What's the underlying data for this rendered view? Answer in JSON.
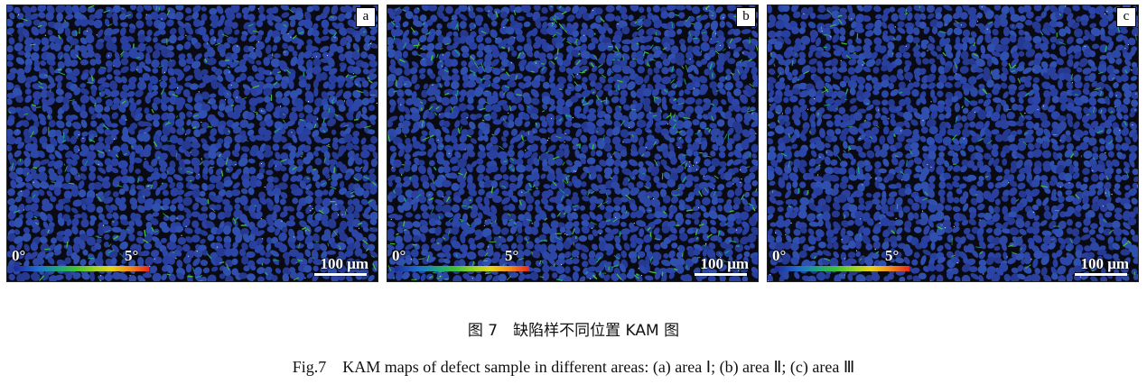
{
  "panels": [
    {
      "letter": "a",
      "scale_min": "0°",
      "scale_max": "5°",
      "scale_bar": "100 μm",
      "green_density": 0.28
    },
    {
      "letter": "b",
      "scale_min": "0°",
      "scale_max": "5°",
      "scale_bar": "100 μm",
      "green_density": 0.5
    },
    {
      "letter": "c",
      "scale_min": "0°",
      "scale_max": "5°",
      "scale_bar": "100 μm",
      "green_density": 0.18
    }
  ],
  "colors": {
    "grain_blue": "#2a3f9e",
    "boundary": "#0a0a12",
    "green": "#3fbf3a",
    "cyan": "#1ea57e"
  },
  "caption": {
    "cn": "图 7　缺陷样不同位置 KAM 图",
    "en": "Fig.7　KAM maps of defect sample in different areas: (a) area Ⅰ; (b) area Ⅱ; (c) area Ⅲ"
  }
}
